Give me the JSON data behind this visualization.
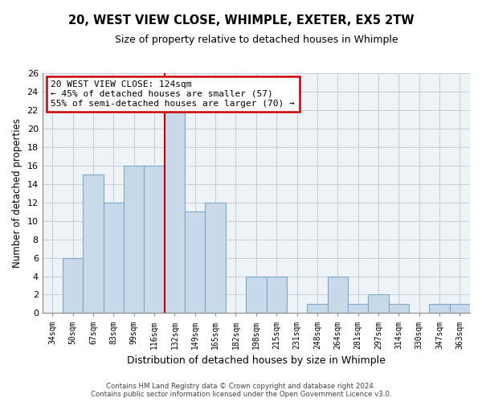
{
  "title": "20, WEST VIEW CLOSE, WHIMPLE, EXETER, EX5 2TW",
  "subtitle": "Size of property relative to detached houses in Whimple",
  "xlabel": "Distribution of detached houses by size in Whimple",
  "ylabel": "Number of detached properties",
  "bin_labels": [
    "34sqm",
    "50sqm",
    "67sqm",
    "83sqm",
    "99sqm",
    "116sqm",
    "132sqm",
    "149sqm",
    "165sqm",
    "182sqm",
    "198sqm",
    "215sqm",
    "231sqm",
    "248sqm",
    "264sqm",
    "281sqm",
    "297sqm",
    "314sqm",
    "330sqm",
    "347sqm",
    "363sqm"
  ],
  "bar_values": [
    0,
    6,
    15,
    12,
    16,
    16,
    22,
    11,
    12,
    0,
    4,
    4,
    0,
    1,
    4,
    1,
    2,
    1,
    0,
    1,
    1
  ],
  "bar_color": "#c8d9ea",
  "bar_edge_color": "#7baac8",
  "highlight_line_bin_index": 6.0,
  "ylim": [
    0,
    26
  ],
  "yticks": [
    0,
    2,
    4,
    6,
    8,
    10,
    12,
    14,
    16,
    18,
    20,
    22,
    24,
    26
  ],
  "annotation_title": "20 WEST VIEW CLOSE: 124sqm",
  "annotation_line1": "← 45% of detached houses are smaller (57)",
  "annotation_line2": "55% of semi-detached houses are larger (70) →",
  "annotation_box_color": "#ffffff",
  "annotation_box_edge": "#cc0000",
  "red_line_color": "#cc0000",
  "footer_line1": "Contains HM Land Registry data © Crown copyright and database right 2024.",
  "footer_line2": "Contains public sector information licensed under the Open Government Licence v3.0.",
  "background_color": "#ffffff",
  "plot_bg_color": "#eef3f8",
  "grid_color": "#c8cdd4"
}
